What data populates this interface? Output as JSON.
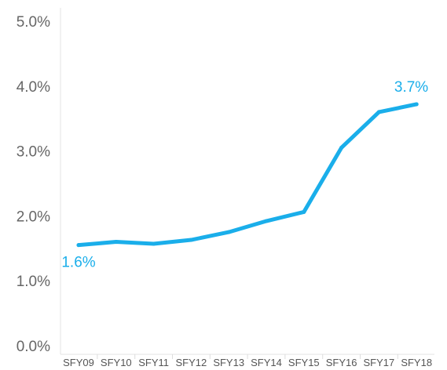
{
  "chart_data": {
    "type": "line",
    "title": "",
    "xlabel": "",
    "ylabel": "",
    "categories": [
      "SFY09",
      "SFY10",
      "SFY11",
      "SFY12",
      "SFY13",
      "SFY14",
      "SFY15",
      "SFY16",
      "SFY17",
      "SFY18"
    ],
    "series": [
      {
        "values": [
          1.55,
          1.6,
          1.57,
          1.63,
          1.75,
          1.92,
          2.06,
          3.05,
          3.6,
          3.72
        ],
        "color": "#1aaeea"
      }
    ],
    "y_ticks": [
      "0.0%",
      "1.0%",
      "2.0%",
      "3.0%",
      "4.0%",
      "5.0%"
    ],
    "ylim": [
      0,
      5
    ],
    "data_labels": [
      {
        "index": 0,
        "text": "1.6%"
      },
      {
        "index": 9,
        "text": "3.7%"
      }
    ],
    "grid": false,
    "legend": "none"
  }
}
